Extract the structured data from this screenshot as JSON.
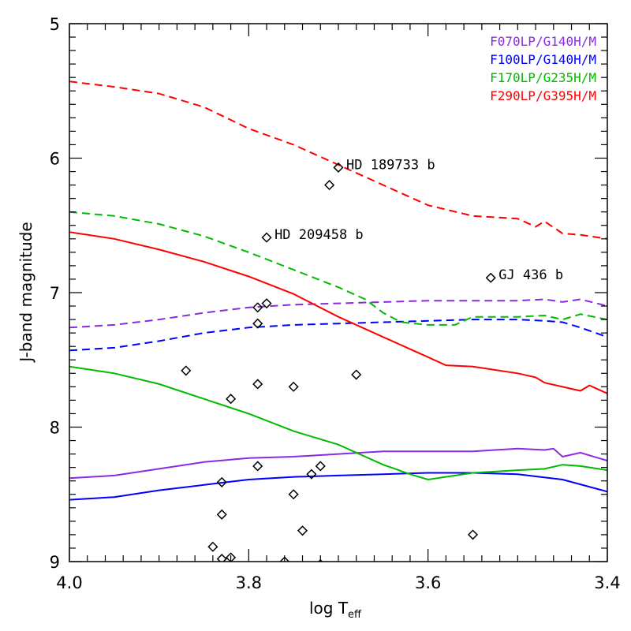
{
  "chart_data": {
    "type": "line",
    "title": "",
    "xlabel": "log T",
    "xlabel_sub": "eff",
    "ylabel": "J-band magnitude",
    "xlim": [
      4.0,
      3.4
    ],
    "ylim": [
      9.0,
      5.0
    ],
    "xticks": [
      4.0,
      3.8,
      3.6,
      3.4
    ],
    "xtick_labels": [
      "4.0",
      "3.8",
      "3.6",
      "3.4"
    ],
    "yticks": [
      5,
      6,
      7,
      8,
      9
    ],
    "ytick_labels": [
      "5",
      "6",
      "7",
      "8",
      "9"
    ],
    "legend_position": "top-right",
    "series": [
      {
        "name": "F070LP/G140H/M",
        "color": "#8a2be2",
        "dash": "dashed",
        "x": [
          4.0,
          3.95,
          3.9,
          3.85,
          3.8,
          3.75,
          3.7,
          3.65,
          3.6,
          3.55,
          3.5,
          3.47,
          3.45,
          3.43,
          3.4
        ],
        "y": [
          7.26,
          7.24,
          7.2,
          7.15,
          7.11,
          7.09,
          7.08,
          7.07,
          7.06,
          7.06,
          7.06,
          7.05,
          7.07,
          7.05,
          7.1
        ]
      },
      {
        "name": "F100LP/G140H/M",
        "color": "#0000ff",
        "dash": "dashed",
        "x": [
          4.0,
          3.95,
          3.9,
          3.85,
          3.8,
          3.75,
          3.7,
          3.65,
          3.6,
          3.55,
          3.5,
          3.47,
          3.45,
          3.43,
          3.4
        ],
        "y": [
          7.43,
          7.41,
          7.36,
          7.3,
          7.26,
          7.24,
          7.23,
          7.22,
          7.21,
          7.2,
          7.2,
          7.21,
          7.22,
          7.26,
          7.33
        ]
      },
      {
        "name": "F170LP/G235H/M",
        "color": "#00bb00",
        "dash": "dashed",
        "x": [
          4.0,
          3.95,
          3.9,
          3.85,
          3.8,
          3.75,
          3.7,
          3.67,
          3.65,
          3.63,
          3.6,
          3.57,
          3.55,
          3.5,
          3.47,
          3.45,
          3.43,
          3.4
        ],
        "y": [
          6.4,
          6.43,
          6.49,
          6.58,
          6.7,
          6.83,
          6.96,
          7.05,
          7.15,
          7.22,
          7.24,
          7.24,
          7.18,
          7.18,
          7.17,
          7.2,
          7.16,
          7.2
        ]
      },
      {
        "name": "F290LP/G395H/M",
        "color": "#ff0000",
        "dash": "dashed",
        "x": [
          4.0,
          3.95,
          3.9,
          3.85,
          3.8,
          3.75,
          3.7,
          3.65,
          3.6,
          3.55,
          3.5,
          3.48,
          3.47,
          3.45,
          3.43,
          3.4
        ],
        "y": [
          5.43,
          5.47,
          5.52,
          5.62,
          5.78,
          5.9,
          6.05,
          6.2,
          6.35,
          6.43,
          6.45,
          6.51,
          6.47,
          6.56,
          6.57,
          6.6
        ]
      },
      {
        "name": "F070LP/G140H/M (solid)",
        "color": "#8a2be2",
        "dash": "solid",
        "x": [
          4.0,
          3.95,
          3.9,
          3.85,
          3.8,
          3.75,
          3.7,
          3.65,
          3.6,
          3.55,
          3.5,
          3.47,
          3.46,
          3.45,
          3.43,
          3.4
        ],
        "y": [
          8.38,
          8.36,
          8.31,
          8.26,
          8.23,
          8.22,
          8.2,
          8.18,
          8.18,
          8.18,
          8.16,
          8.17,
          8.16,
          8.22,
          8.19,
          8.25
        ]
      },
      {
        "name": "F100LP/G140H/M (solid)",
        "color": "#0000ff",
        "dash": "solid",
        "x": [
          4.0,
          3.95,
          3.9,
          3.85,
          3.8,
          3.75,
          3.7,
          3.65,
          3.6,
          3.55,
          3.5,
          3.45,
          3.4
        ],
        "y": [
          8.54,
          8.52,
          8.47,
          8.43,
          8.39,
          8.37,
          8.36,
          8.35,
          8.34,
          8.34,
          8.35,
          8.39,
          8.48
        ]
      },
      {
        "name": "F170LP/G235H/M (solid)",
        "color": "#00bb00",
        "dash": "solid",
        "x": [
          4.0,
          3.95,
          3.9,
          3.85,
          3.8,
          3.75,
          3.7,
          3.65,
          3.62,
          3.6,
          3.57,
          3.55,
          3.5,
          3.47,
          3.45,
          3.43,
          3.4
        ],
        "y": [
          7.55,
          7.6,
          7.68,
          7.79,
          7.9,
          8.03,
          8.13,
          8.28,
          8.35,
          8.39,
          8.36,
          8.34,
          8.32,
          8.31,
          8.28,
          8.29,
          8.32
        ]
      },
      {
        "name": "F290LP/G395H/M (solid)",
        "color": "#ff0000",
        "dash": "solid",
        "x": [
          4.0,
          3.95,
          3.9,
          3.85,
          3.8,
          3.75,
          3.7,
          3.65,
          3.6,
          3.58,
          3.55,
          3.5,
          3.48,
          3.47,
          3.45,
          3.43,
          3.42,
          3.4
        ],
        "y": [
          6.55,
          6.6,
          6.68,
          6.77,
          6.88,
          7.01,
          7.18,
          7.33,
          7.48,
          7.54,
          7.55,
          7.6,
          7.63,
          7.67,
          7.7,
          7.73,
          7.69,
          7.75
        ]
      }
    ],
    "points": [
      {
        "x": 3.87,
        "y": 7.58
      },
      {
        "x": 3.79,
        "y": 7.68
      },
      {
        "x": 3.82,
        "y": 7.79
      },
      {
        "x": 3.75,
        "y": 7.7
      },
      {
        "x": 3.68,
        "y": 7.61
      },
      {
        "x": 3.79,
        "y": 8.29
      },
      {
        "x": 3.73,
        "y": 8.35
      },
      {
        "x": 3.72,
        "y": 8.29
      },
      {
        "x": 3.83,
        "y": 8.41
      },
      {
        "x": 3.75,
        "y": 8.5
      },
      {
        "x": 3.83,
        "y": 8.65
      },
      {
        "x": 3.74,
        "y": 8.77
      },
      {
        "x": 3.84,
        "y": 8.89
      },
      {
        "x": 3.83,
        "y": 8.98
      },
      {
        "x": 3.82,
        "y": 8.97
      },
      {
        "x": 3.76,
        "y": 9.0
      },
      {
        "x": 3.72,
        "y": 9.02
      },
      {
        "x": 3.55,
        "y": 8.8
      },
      {
        "x": 3.79,
        "y": 7.11
      },
      {
        "x": 3.78,
        "y": 7.08
      },
      {
        "x": 3.79,
        "y": 7.23
      },
      {
        "x": 3.71,
        "y": 6.2
      },
      {
        "x": 3.7,
        "y": 6.07
      },
      {
        "x": 3.78,
        "y": 6.59
      },
      {
        "x": 3.53,
        "y": 6.89
      }
    ],
    "annotations": [
      {
        "text": "HD 189733 b",
        "x": 3.7,
        "y": 6.07
      },
      {
        "text": "HD 209458 b",
        "x": 3.78,
        "y": 6.59
      },
      {
        "text": "GJ 436 b",
        "x": 3.53,
        "y": 6.89
      }
    ],
    "legend": [
      {
        "label": "F070LP/G140H/M",
        "color": "#8a2be2"
      },
      {
        "label": "F100LP/G140H/M",
        "color": "#0000ff"
      },
      {
        "label": "F170LP/G235H/M",
        "color": "#00bb00"
      },
      {
        "label": "F290LP/G395H/M",
        "color": "#ff0000"
      }
    ]
  }
}
